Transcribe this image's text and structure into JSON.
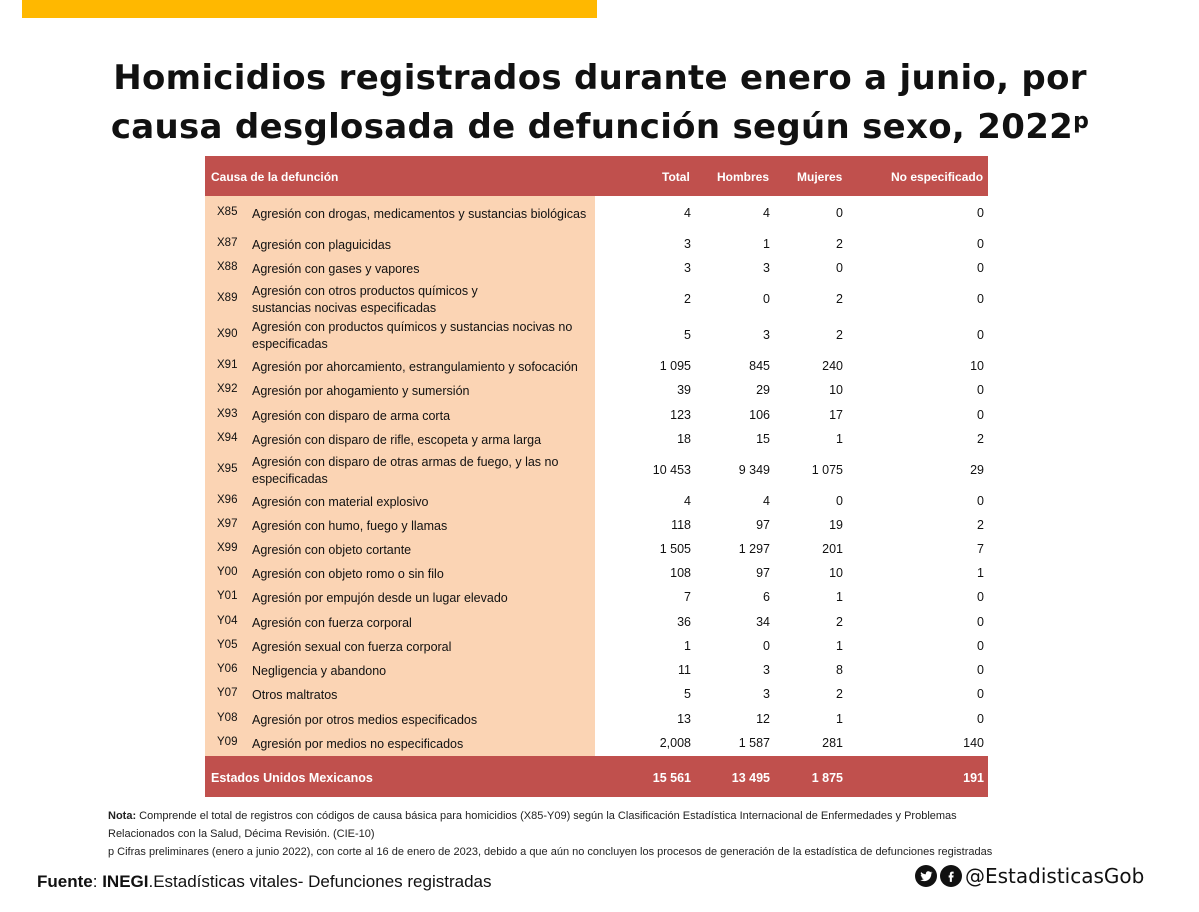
{
  "title_line1": "Homicidios registrados durante enero a junio, por",
  "title_line2": "causa desglosada de defunción según sexo, 2022",
  "title_sup": "p",
  "header": {
    "cause": "Causa de la defunción",
    "total": "Total",
    "hombres": "Hombres",
    "mujeres": "Mujeres",
    "no_esp": "No especificado"
  },
  "rows": [
    {
      "code": "X85",
      "desc1": "Agresión con drogas, medicamentos y sustancias biológicas",
      "desc2": "",
      "total": "4",
      "h": "4",
      "m": "0",
      "ne": "0"
    },
    {
      "code": "X87",
      "desc1": "Agresión con plaguicidas",
      "desc2": "",
      "total": "3",
      "h": "1",
      "m": "2",
      "ne": "0"
    },
    {
      "code": "X88",
      "desc1": "Agresión con gases y vapores",
      "desc2": "",
      "total": "3",
      "h": "3",
      "m": "0",
      "ne": "0"
    },
    {
      "code": "X89",
      "desc1": "Agresión con otros productos químicos y",
      "desc2": "sustancias nocivas especificadas",
      "total": "2",
      "h": "0",
      "m": "2",
      "ne": "0"
    },
    {
      "code": "X90",
      "desc1": "Agresión con productos químicos y sustancias nocivas no",
      "desc2": "especificadas",
      "total": "5",
      "h": "3",
      "m": "2",
      "ne": "0"
    },
    {
      "code": "X91",
      "desc1": "Agresión por ahorcamiento, estrangulamiento y sofocación",
      "desc2": "",
      "total": "1 095",
      "h": "845",
      "m": "240",
      "ne": "10"
    },
    {
      "code": "X92",
      "desc1": "Agresión por ahogamiento y sumersión",
      "desc2": "",
      "total": "39",
      "h": "29",
      "m": "10",
      "ne": "0"
    },
    {
      "code": "X93",
      "desc1": "Agresión con disparo de arma corta",
      "desc2": "",
      "total": "123",
      "h": "106",
      "m": "17",
      "ne": "0"
    },
    {
      "code": "X94",
      "desc1": "Agresión con disparo de rifle, escopeta y arma larga",
      "desc2": "",
      "total": "18",
      "h": "15",
      "m": "1",
      "ne": "2"
    },
    {
      "code": "X95",
      "desc1": "Agresión con disparo de otras armas de fuego, y las no",
      "desc2": "especificadas",
      "total": "10 453",
      "h": "9 349",
      "m": "1 075",
      "ne": "29"
    },
    {
      "code": "X96",
      "desc1": "Agresión con material explosivo",
      "desc2": "",
      "total": "4",
      "h": "4",
      "m": "0",
      "ne": "0"
    },
    {
      "code": "X97",
      "desc1": "Agresión con humo, fuego y llamas",
      "desc2": "",
      "total": "118",
      "h": "97",
      "m": "19",
      "ne": "2"
    },
    {
      "code": "X99",
      "desc1": "Agresión con objeto cortante",
      "desc2": "",
      "total": "1 505",
      "h": "1 297",
      "m": "201",
      "ne": "7"
    },
    {
      "code": "Y00",
      "desc1": "Agresión con objeto romo o sin filo",
      "desc2": "",
      "total": "108",
      "h": "97",
      "m": "10",
      "ne": "1"
    },
    {
      "code": "Y01",
      "desc1": "Agresión por empujón desde un lugar elevado",
      "desc2": "",
      "total": "7",
      "h": "6",
      "m": "1",
      "ne": "0"
    },
    {
      "code": "Y04",
      "desc1": "Agresión con fuerza corporal",
      "desc2": "",
      "total": "36",
      "h": "34",
      "m": "2",
      "ne": "0"
    },
    {
      "code": "Y05",
      "desc1": "Agresión sexual con fuerza corporal",
      "desc2": "",
      "total": "1",
      "h": "0",
      "m": "1",
      "ne": "0"
    },
    {
      "code": "Y06",
      "desc1": "Negligencia y abandono",
      "desc2": "",
      "total": "11",
      "h": "3",
      "m": "8",
      "ne": "0"
    },
    {
      "code": "Y07",
      "desc1": "Otros maltratos",
      "desc2": "",
      "total": "5",
      "h": "3",
      "m": "2",
      "ne": "0"
    },
    {
      "code": "Y08",
      "desc1": "Agresión por otros medios especificados",
      "desc2": "",
      "total": "13",
      "h": "12",
      "m": "1",
      "ne": "0"
    },
    {
      "code": "Y09",
      "desc1": "Agresión por medios no especificados",
      "desc2": "",
      "total": "2,008",
      "h": "1 587",
      "m": "281",
      "ne": "140"
    }
  ],
  "footer": {
    "label": "Estados Unidos Mexicanos",
    "total": "15 561",
    "hombres": "13 495",
    "mujeres": "1 875",
    "no_esp": "191"
  },
  "notes": {
    "nota_label": "Nota:",
    "nota_line1": " Comprende el total de registros con códigos de causa básica para homicidios (X85-Y09) según la Clasificación Estadística Internacional de Enfermedades y Problemas",
    "nota_line2": "Relacionados con la Salud, Décima Revisión. (CIE-10)",
    "p_line": "p Cifras preliminares (enero a junio 2022), con corte al 16 de enero de 2023, debido a que aún no concluyen los procesos de generación de la estadística de defunciones registradas"
  },
  "source": {
    "label": "Fuente",
    "sep": ": ",
    "org": "INEGI",
    "rest": ".Estadísticas vitales- Defunciones registradas"
  },
  "social": {
    "handle": "@EstadisticasGob",
    "icons": [
      "twitter-icon",
      "facebook-icon"
    ]
  },
  "colors": {
    "accent_bar": "#FFB800",
    "header_bg": "#C0504D",
    "cause_bg": "#FBD4B4"
  }
}
